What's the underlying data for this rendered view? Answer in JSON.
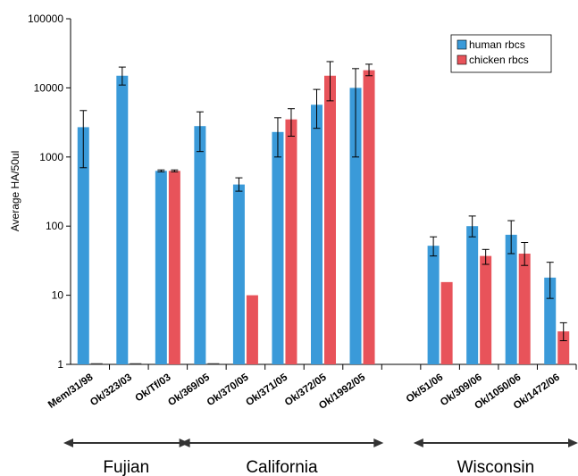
{
  "chart_data": {
    "type": "bar",
    "ylabel": "Average HA/50ul",
    "xlabel": "",
    "yscale": "log",
    "ylim": [
      1,
      100000
    ],
    "yticks": [
      "1",
      "10",
      "100",
      "1000",
      "10000",
      "100000"
    ],
    "legend_position": "top-right",
    "categories": [
      "Mem/31/98",
      "Ok/323/03",
      "Ok/Tf/03",
      "Ok/369/05",
      "Ok/370/05",
      "Ok/371/05",
      "Ok/372/05",
      "Ok/1992/05",
      "",
      "Ok/51/06",
      "Ok/309/06",
      "Ok/1050/06",
      "Ok/1472/06"
    ],
    "series": [
      {
        "name": "human rbcs",
        "color": "#3a9ad9",
        "values": [
          2700,
          15000,
          630,
          2800,
          400,
          2300,
          5700,
          10000,
          1,
          52,
          100,
          75,
          18
        ],
        "err_low": [
          700,
          11000,
          610,
          1200,
          320,
          1000,
          2600,
          1000,
          1,
          37,
          70,
          40,
          9
        ],
        "err_high": [
          4700,
          20000,
          650,
          4500,
          500,
          3700,
          9500,
          19000,
          1,
          70,
          140,
          120,
          30
        ]
      },
      {
        "name": "chicken rbcs",
        "color": "#e8535a",
        "values": [
          1,
          1,
          630,
          1,
          10,
          3500,
          15000,
          18000,
          1,
          15.5,
          37,
          40,
          3
        ],
        "err_low": [
          1,
          1,
          610,
          1,
          10,
          2000,
          6500,
          15000,
          1,
          15.5,
          28,
          27,
          2.2
        ],
        "err_high": [
          1,
          1,
          650,
          1,
          10,
          5000,
          24000,
          22000,
          1,
          15.5,
          46,
          58,
          4
        ]
      }
    ],
    "groups": [
      {
        "label": "Fujian",
        "from": 0,
        "to": 2
      },
      {
        "label": "California",
        "from": 3,
        "to": 7
      },
      {
        "label": "Wisconsin",
        "from": 9,
        "to": 12
      }
    ]
  }
}
